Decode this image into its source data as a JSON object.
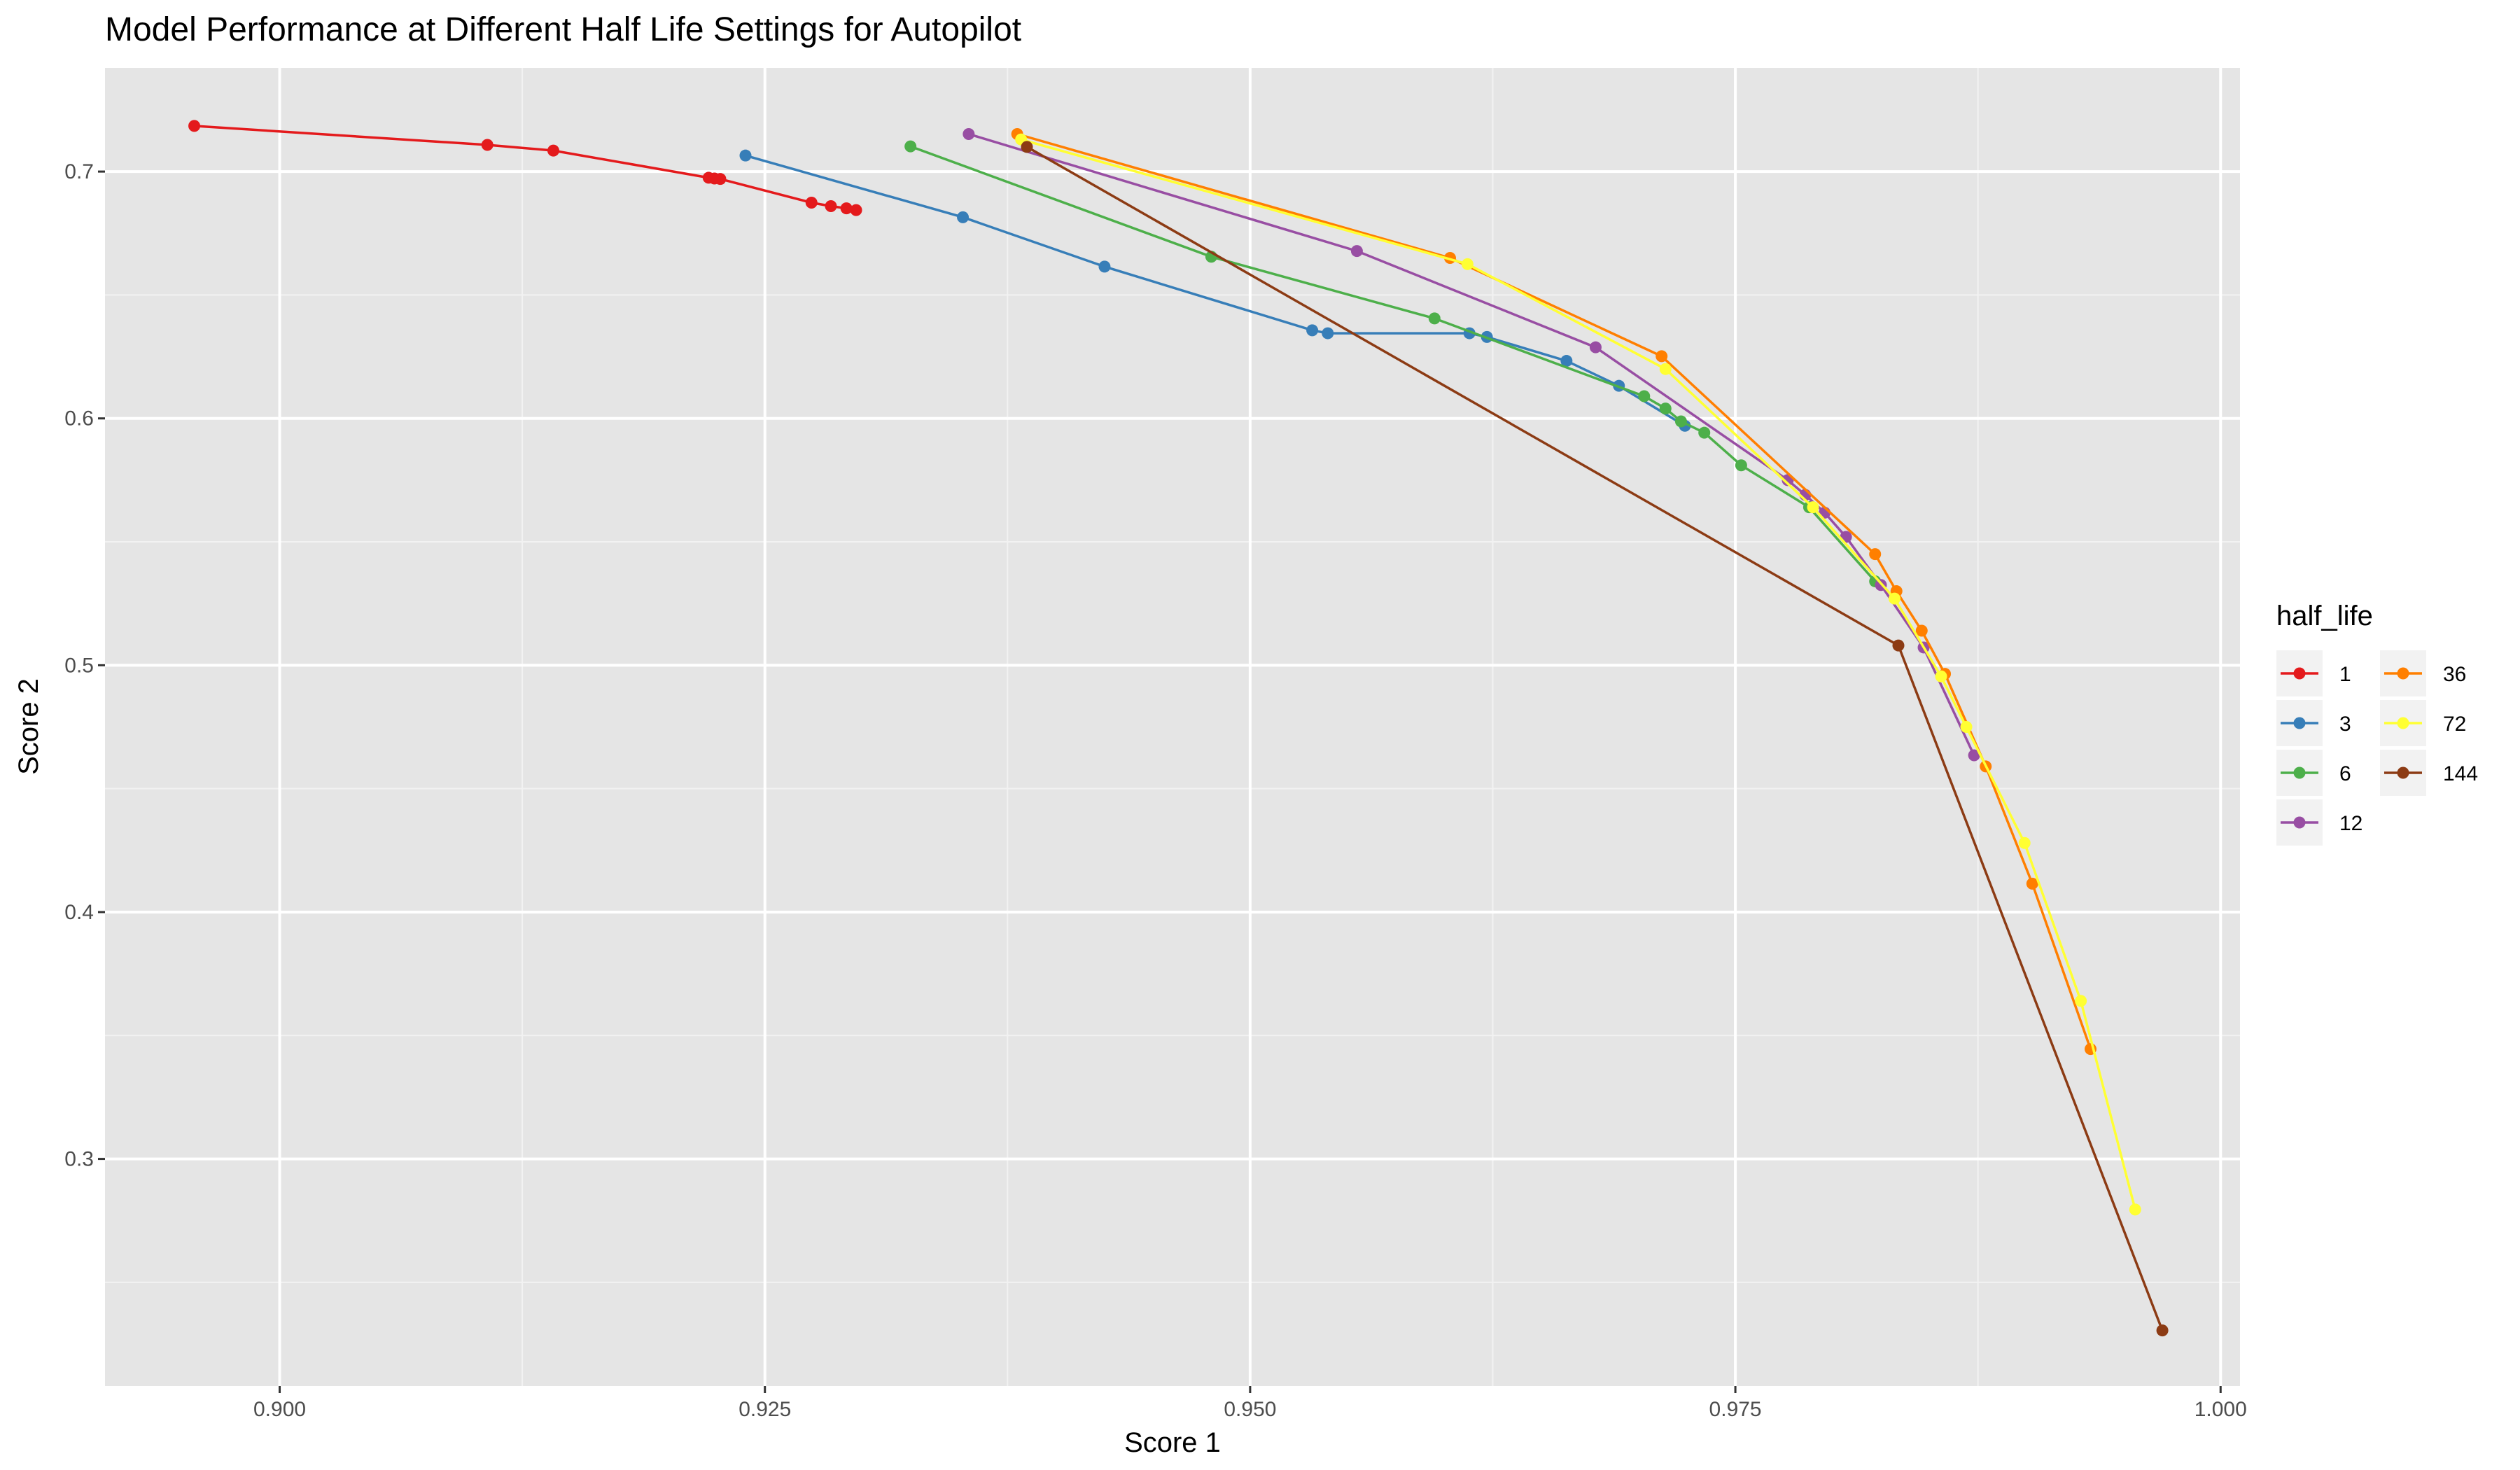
{
  "chart_data": {
    "type": "line",
    "title": "Model Performance at Different Half Life Settings for Autopilot",
    "xlabel": "Score 1",
    "ylabel": "Score 2",
    "xlim": [
      0.891,
      1.001
    ],
    "ylim": [
      0.208,
      0.742
    ],
    "x_ticks": [
      0.9,
      0.925,
      0.95,
      0.975,
      1.0
    ],
    "x_tick_labels": [
      "0.900",
      "0.925",
      "0.950",
      "0.975",
      "1.000"
    ],
    "y_ticks": [
      0.3,
      0.4,
      0.5,
      0.6,
      0.7
    ],
    "y_tick_labels": [
      "0.3",
      "0.4",
      "0.5",
      "0.6",
      "0.7"
    ],
    "grid": true,
    "legend_title": "half_life",
    "legend_position": "right",
    "series": [
      {
        "name": "1",
        "color": "#e41a1c",
        "points": [
          [
            0.8956,
            0.7185
          ],
          [
            0.9107,
            0.7108
          ],
          [
            0.9141,
            0.7085
          ],
          [
            0.9221,
            0.6975
          ],
          [
            0.9224,
            0.6972
          ],
          [
            0.9227,
            0.697
          ],
          [
            0.9274,
            0.6874
          ],
          [
            0.9284,
            0.686
          ],
          [
            0.9292,
            0.6851
          ],
          [
            0.9297,
            0.6844
          ]
        ]
      },
      {
        "name": "3",
        "color": "#377eb8",
        "points": [
          [
            0.924,
            0.7065
          ],
          [
            0.9352,
            0.6815
          ],
          [
            0.9425,
            0.6615
          ],
          [
            0.9532,
            0.6357
          ],
          [
            0.954,
            0.6345
          ],
          [
            0.9613,
            0.6345
          ],
          [
            0.9622,
            0.633
          ],
          [
            0.9663,
            0.6233
          ],
          [
            0.969,
            0.6132
          ],
          [
            0.9724,
            0.597
          ]
        ]
      },
      {
        "name": "6",
        "color": "#4daf4a",
        "points": [
          [
            0.9325,
            0.7102
          ],
          [
            0.948,
            0.6655
          ],
          [
            0.9595,
            0.6405
          ],
          [
            0.9703,
            0.609
          ],
          [
            0.9714,
            0.604
          ],
          [
            0.9722,
            0.5988
          ],
          [
            0.9734,
            0.5942
          ],
          [
            0.9753,
            0.581
          ],
          [
            0.9788,
            0.564
          ],
          [
            0.9822,
            0.534
          ]
        ]
      },
      {
        "name": "12",
        "color": "#984ea3",
        "points": [
          [
            0.9355,
            0.7152
          ],
          [
            0.9555,
            0.6678
          ],
          [
            0.9678,
            0.6288
          ],
          [
            0.9777,
            0.575
          ],
          [
            0.9786,
            0.569
          ],
          [
            0.9796,
            0.5618
          ],
          [
            0.9807,
            0.552
          ],
          [
            0.9825,
            0.5325
          ],
          [
            0.9847,
            0.5072
          ],
          [
            0.9873,
            0.4635
          ]
        ]
      },
      {
        "name": "36",
        "color": "#ff7f00",
        "points": [
          [
            0.938,
            0.7152
          ],
          [
            0.9603,
            0.665
          ],
          [
            0.9712,
            0.6252
          ],
          [
            0.9822,
            0.545
          ],
          [
            0.9833,
            0.53
          ],
          [
            0.9846,
            0.514
          ],
          [
            0.9858,
            0.4965
          ],
          [
            0.9879,
            0.459
          ],
          [
            0.9903,
            0.4115
          ],
          [
            0.9933,
            0.3445
          ]
        ]
      },
      {
        "name": "72",
        "color": "#ffff33",
        "points": [
          [
            0.9382,
            0.713
          ],
          [
            0.9612,
            0.6625
          ],
          [
            0.9714,
            0.62
          ],
          [
            0.979,
            0.564
          ],
          [
            0.9832,
            0.527
          ],
          [
            0.9856,
            0.4955
          ],
          [
            0.9869,
            0.475
          ],
          [
            0.9899,
            0.428
          ],
          [
            0.9928,
            0.364
          ],
          [
            0.9956,
            0.2795
          ]
        ]
      },
      {
        "name": "144",
        "color": "#8c3b14",
        "points": [
          [
            0.9385,
            0.71
          ],
          [
            0.9834,
            0.508
          ],
          [
            0.997,
            0.2305
          ]
        ]
      }
    ]
  }
}
